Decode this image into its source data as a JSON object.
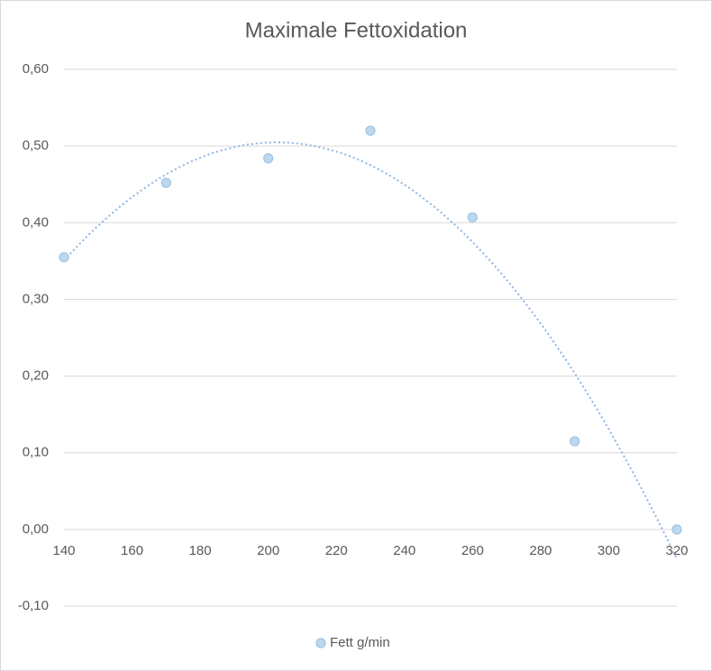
{
  "chart_data": {
    "type": "scatter",
    "title": "Maximale Fettoxidation",
    "x": [
      140,
      170,
      200,
      230,
      260,
      290,
      320
    ],
    "series": [
      {
        "name": "Fett g/min",
        "color": "#bdd7ee",
        "values": [
          0.355,
          0.452,
          0.484,
          0.52,
          0.407,
          0.115,
          0.0
        ]
      }
    ],
    "trendline": {
      "type": "polynomial",
      "order": 2,
      "color": "#8fb4e3"
    },
    "xlim": [
      140,
      320
    ],
    "xticks": [
      140,
      160,
      180,
      200,
      220,
      240,
      260,
      280,
      300,
      320
    ],
    "ylim": [
      -0.1,
      0.6
    ],
    "yticks": [
      {
        "value": -0.1,
        "label": "-0,10"
      },
      {
        "value": 0,
        "label": "0,00"
      },
      {
        "value": 0.1,
        "label": "0,10"
      },
      {
        "value": 0.2,
        "label": "0,20"
      },
      {
        "value": 0.3,
        "label": "0,30"
      },
      {
        "value": 0.4,
        "label": "0,40"
      },
      {
        "value": 0.5,
        "label": "0,50"
      },
      {
        "value": 0.6,
        "label": "0,60"
      }
    ],
    "grid": true,
    "legend": "bottom"
  }
}
